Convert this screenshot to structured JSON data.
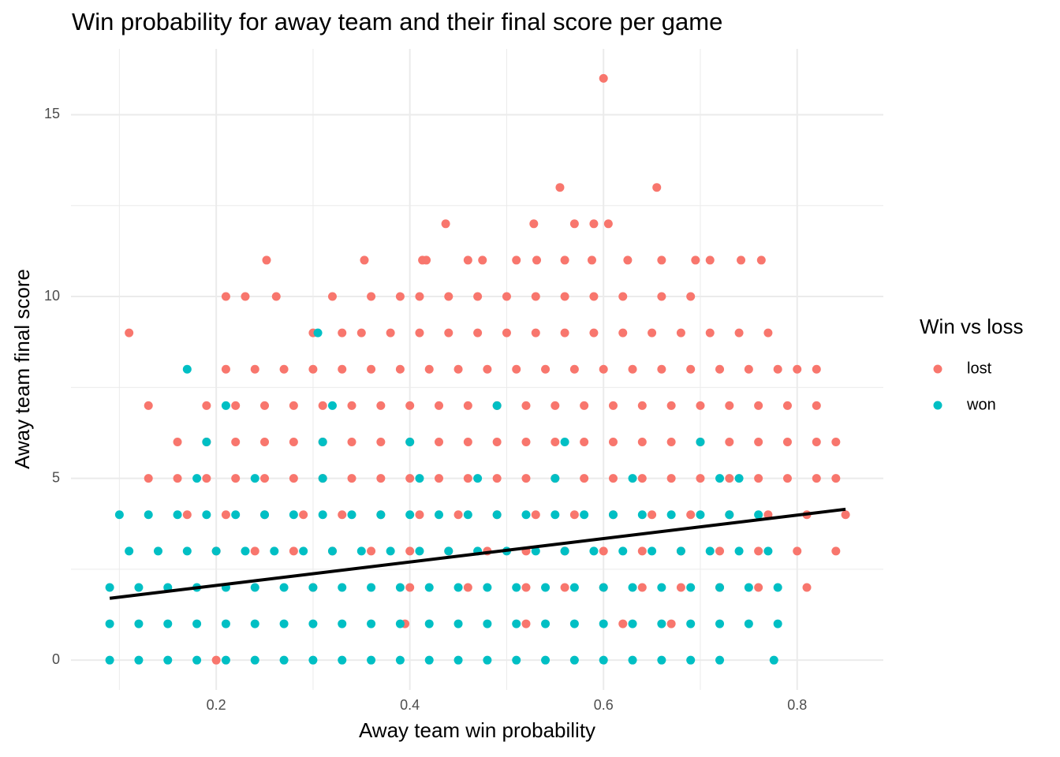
{
  "chart_data": {
    "type": "scatter",
    "title": "Win probability for away team and their final score per game",
    "x_label": "Away team win probability",
    "y_label": "Away team final score",
    "legend_title": "Win vs loss",
    "legend_position": "right",
    "grid": true,
    "xlim": [
      0.05,
      0.889
    ],
    "ylim": [
      -0.82,
      16.81
    ],
    "xticks": [
      0.2,
      0.4,
      0.6,
      0.8
    ],
    "yticks": [
      0,
      5,
      10,
      15
    ],
    "x_minor_gridlines": [
      0.1,
      0.3,
      0.5,
      0.7
    ],
    "y_minor_gridlines": [
      2.5,
      7.5,
      12.5
    ],
    "series": [
      {
        "name": "lost",
        "color": "#F8766D",
        "x": [
          0.6,
          0.555,
          0.655,
          0.437,
          0.528,
          0.57,
          0.59,
          0.605,
          0.252,
          0.353,
          0.413,
          0.417,
          0.46,
          0.475,
          0.51,
          0.531,
          0.56,
          0.588,
          0.625,
          0.66,
          0.695,
          0.71,
          0.742,
          0.763,
          0.21,
          0.23,
          0.262,
          0.32,
          0.36,
          0.39,
          0.41,
          0.44,
          0.47,
          0.5,
          0.53,
          0.56,
          0.59,
          0.62,
          0.66,
          0.69,
          0.11,
          0.3,
          0.33,
          0.35,
          0.38,
          0.41,
          0.44,
          0.47,
          0.5,
          0.53,
          0.56,
          0.59,
          0.62,
          0.65,
          0.68,
          0.71,
          0.74,
          0.77,
          0.21,
          0.24,
          0.27,
          0.3,
          0.33,
          0.36,
          0.39,
          0.42,
          0.45,
          0.48,
          0.51,
          0.54,
          0.57,
          0.6,
          0.63,
          0.66,
          0.69,
          0.72,
          0.75,
          0.78,
          0.8,
          0.82,
          0.13,
          0.19,
          0.22,
          0.25,
          0.28,
          0.31,
          0.34,
          0.37,
          0.4,
          0.43,
          0.46,
          0.49,
          0.52,
          0.55,
          0.58,
          0.61,
          0.64,
          0.67,
          0.7,
          0.73,
          0.76,
          0.79,
          0.82,
          0.16,
          0.19,
          0.22,
          0.25,
          0.28,
          0.31,
          0.34,
          0.37,
          0.4,
          0.43,
          0.46,
          0.49,
          0.52,
          0.55,
          0.58,
          0.61,
          0.64,
          0.67,
          0.7,
          0.73,
          0.76,
          0.79,
          0.82,
          0.84,
          0.13,
          0.16,
          0.19,
          0.22,
          0.25,
          0.28,
          0.31,
          0.34,
          0.37,
          0.4,
          0.43,
          0.46,
          0.49,
          0.52,
          0.55,
          0.58,
          0.61,
          0.64,
          0.67,
          0.7,
          0.73,
          0.76,
          0.79,
          0.82,
          0.84,
          0.17,
          0.21,
          0.25,
          0.29,
          0.33,
          0.37,
          0.41,
          0.45,
          0.49,
          0.53,
          0.57,
          0.61,
          0.65,
          0.69,
          0.73,
          0.77,
          0.81,
          0.85,
          0.2,
          0.24,
          0.28,
          0.32,
          0.36,
          0.4,
          0.44,
          0.48,
          0.52,
          0.56,
          0.6,
          0.64,
          0.68,
          0.72,
          0.76,
          0.8,
          0.84,
          0.3,
          0.4,
          0.46,
          0.52,
          0.56,
          0.6,
          0.64,
          0.68,
          0.72,
          0.76,
          0.81,
          0.395,
          0.52,
          0.62,
          0.67,
          0.2
        ],
        "values": [
          16,
          13,
          13,
          12,
          12,
          12,
          12,
          12,
          11,
          11,
          11,
          11,
          11,
          11,
          11,
          11,
          11,
          11,
          11,
          11,
          11,
          11,
          11,
          11,
          10,
          10,
          10,
          10,
          10,
          10,
          10,
          10,
          10,
          10,
          10,
          10,
          10,
          10,
          10,
          10,
          9,
          9,
          9,
          9,
          9,
          9,
          9,
          9,
          9,
          9,
          9,
          9,
          9,
          9,
          9,
          9,
          9,
          9,
          8,
          8,
          8,
          8,
          8,
          8,
          8,
          8,
          8,
          8,
          8,
          8,
          8,
          8,
          8,
          8,
          8,
          8,
          8,
          8,
          8,
          8,
          7,
          7,
          7,
          7,
          7,
          7,
          7,
          7,
          7,
          7,
          7,
          7,
          7,
          7,
          7,
          7,
          7,
          7,
          7,
          7,
          7,
          7,
          7,
          6,
          6,
          6,
          6,
          6,
          6,
          6,
          6,
          6,
          6,
          6,
          6,
          6,
          6,
          6,
          6,
          6,
          6,
          6,
          6,
          6,
          6,
          6,
          6,
          5,
          5,
          5,
          5,
          5,
          5,
          5,
          5,
          5,
          5,
          5,
          5,
          5,
          5,
          5,
          5,
          5,
          5,
          5,
          5,
          5,
          5,
          5,
          5,
          5,
          4,
          4,
          4,
          4,
          4,
          4,
          4,
          4,
          4,
          4,
          4,
          4,
          4,
          4,
          4,
          4,
          4,
          4,
          3,
          3,
          3,
          3,
          3,
          3,
          3,
          3,
          3,
          3,
          3,
          3,
          3,
          3,
          3,
          3,
          3,
          2,
          2,
          2,
          2,
          2,
          2,
          2,
          2,
          2,
          2,
          2,
          1,
          1,
          1,
          1,
          0
        ]
      },
      {
        "name": "won",
        "color": "#00BFC4",
        "x": [
          0.305,
          0.17,
          0.21,
          0.32,
          0.49,
          0.19,
          0.31,
          0.4,
          0.56,
          0.7,
          0.18,
          0.24,
          0.31,
          0.41,
          0.47,
          0.55,
          0.63,
          0.72,
          0.74,
          0.1,
          0.13,
          0.16,
          0.19,
          0.22,
          0.25,
          0.28,
          0.31,
          0.34,
          0.37,
          0.4,
          0.43,
          0.46,
          0.49,
          0.52,
          0.55,
          0.58,
          0.61,
          0.64,
          0.67,
          0.7,
          0.73,
          0.76,
          0.11,
          0.14,
          0.17,
          0.2,
          0.23,
          0.26,
          0.29,
          0.32,
          0.35,
          0.38,
          0.41,
          0.44,
          0.47,
          0.5,
          0.53,
          0.56,
          0.59,
          0.62,
          0.65,
          0.68,
          0.71,
          0.74,
          0.77,
          0.09,
          0.12,
          0.15,
          0.18,
          0.21,
          0.24,
          0.27,
          0.3,
          0.33,
          0.36,
          0.39,
          0.42,
          0.45,
          0.48,
          0.51,
          0.54,
          0.57,
          0.6,
          0.63,
          0.66,
          0.69,
          0.72,
          0.75,
          0.78,
          0.09,
          0.12,
          0.15,
          0.18,
          0.21,
          0.24,
          0.27,
          0.3,
          0.33,
          0.36,
          0.39,
          0.42,
          0.45,
          0.48,
          0.51,
          0.54,
          0.57,
          0.6,
          0.63,
          0.66,
          0.69,
          0.72,
          0.75,
          0.78,
          0.09,
          0.12,
          0.15,
          0.18,
          0.21,
          0.24,
          0.27,
          0.3,
          0.33,
          0.36,
          0.39,
          0.42,
          0.45,
          0.48,
          0.51,
          0.54,
          0.57,
          0.6,
          0.63,
          0.66,
          0.69,
          0.72,
          0.776
        ],
        "values": [
          9,
          8,
          7,
          7,
          7,
          6,
          6,
          6,
          6,
          6,
          5,
          5,
          5,
          5,
          5,
          5,
          5,
          5,
          5,
          4,
          4,
          4,
          4,
          4,
          4,
          4,
          4,
          4,
          4,
          4,
          4,
          4,
          4,
          4,
          4,
          4,
          4,
          4,
          4,
          4,
          4,
          4,
          3,
          3,
          3,
          3,
          3,
          3,
          3,
          3,
          3,
          3,
          3,
          3,
          3,
          3,
          3,
          3,
          3,
          3,
          3,
          3,
          3,
          3,
          3,
          2,
          2,
          2,
          2,
          2,
          2,
          2,
          2,
          2,
          2,
          2,
          2,
          2,
          2,
          2,
          2,
          2,
          2,
          2,
          2,
          2,
          2,
          2,
          2,
          1,
          1,
          1,
          1,
          1,
          1,
          1,
          1,
          1,
          1,
          1,
          1,
          1,
          1,
          1,
          1,
          1,
          1,
          1,
          1,
          1,
          1,
          1,
          1,
          0,
          0,
          0,
          0,
          0,
          0,
          0,
          0,
          0,
          0,
          0,
          0,
          0,
          0,
          0,
          0,
          0,
          0,
          0,
          0,
          0,
          0,
          0
        ]
      }
    ],
    "trend_line": {
      "color": "#000000",
      "x": [
        0.09,
        0.85
      ],
      "values": [
        1.7,
        4.15
      ]
    }
  }
}
